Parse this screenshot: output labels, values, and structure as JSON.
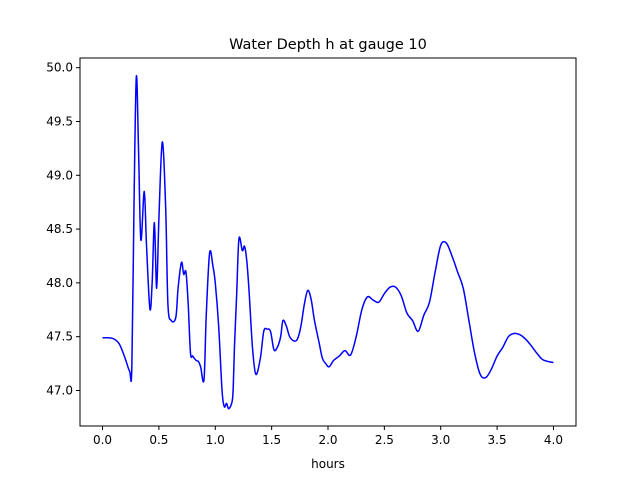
{
  "chart_data": {
    "type": "line",
    "title": "Water Depth h at gauge 10",
    "xlabel": "hours",
    "ylabel": "",
    "xlim": [
      -0.2,
      4.2
    ],
    "ylim": [
      46.67,
      50.09
    ],
    "xticks": [
      0.0,
      0.5,
      1.0,
      1.5,
      2.0,
      2.5,
      3.0,
      3.5,
      4.0
    ],
    "xtick_labels": [
      "0.0",
      "0.5",
      "1.0",
      "1.5",
      "2.0",
      "2.5",
      "3.0",
      "3.5",
      "4.0"
    ],
    "yticks": [
      47.0,
      47.5,
      48.0,
      48.5,
      49.0,
      49.5,
      50.0
    ],
    "ytick_labels": [
      "47.0",
      "47.5",
      "48.0",
      "48.5",
      "49.0",
      "49.5",
      "50.0"
    ],
    "grid": false,
    "legend": "none",
    "series": [
      {
        "color": "#0000ff",
        "x": [
          0.0,
          0.05,
          0.1,
          0.15,
          0.2,
          0.24,
          0.26,
          0.28,
          0.3,
          0.32,
          0.34,
          0.37,
          0.39,
          0.42,
          0.44,
          0.46,
          0.48,
          0.5,
          0.53,
          0.56,
          0.58,
          0.61,
          0.65,
          0.67,
          0.7,
          0.72,
          0.74,
          0.76,
          0.78,
          0.8,
          0.83,
          0.85,
          0.87,
          0.9,
          0.92,
          0.95,
          0.98,
          1.0,
          1.03,
          1.06,
          1.08,
          1.1,
          1.12,
          1.15,
          1.16,
          1.17,
          1.19,
          1.21,
          1.24,
          1.26,
          1.28,
          1.3,
          1.33,
          1.36,
          1.4,
          1.43,
          1.46,
          1.49,
          1.52,
          1.55,
          1.58,
          1.6,
          1.63,
          1.66,
          1.7,
          1.73,
          1.76,
          1.79,
          1.82,
          1.85,
          1.88,
          1.92,
          1.95,
          1.98,
          2.01,
          2.05,
          2.1,
          2.15,
          2.2,
          2.25,
          2.3,
          2.35,
          2.4,
          2.45,
          2.5,
          2.55,
          2.6,
          2.65,
          2.7,
          2.75,
          2.8,
          2.85,
          2.9,
          2.95,
          3.0,
          3.05,
          3.1,
          3.15,
          3.2,
          3.25,
          3.3,
          3.35,
          3.4,
          3.45,
          3.5,
          3.55,
          3.6,
          3.65,
          3.7,
          3.75,
          3.8,
          3.85,
          3.9,
          3.95,
          4.0
        ],
        "y": [
          47.49,
          47.49,
          47.48,
          47.43,
          47.3,
          47.18,
          47.22,
          48.8,
          49.92,
          49.2,
          48.4,
          48.85,
          48.35,
          47.76,
          48.0,
          48.56,
          47.95,
          48.6,
          49.31,
          48.7,
          47.8,
          47.65,
          47.68,
          47.95,
          48.19,
          48.08,
          48.1,
          47.8,
          47.35,
          47.32,
          47.28,
          47.27,
          47.22,
          47.1,
          47.7,
          48.28,
          48.15,
          48.0,
          47.6,
          47.0,
          46.85,
          46.88,
          46.83,
          46.9,
          47.05,
          47.4,
          47.9,
          48.41,
          48.3,
          48.34,
          48.2,
          47.92,
          47.4,
          47.15,
          47.3,
          47.55,
          47.57,
          47.55,
          47.38,
          47.4,
          47.5,
          47.65,
          47.6,
          47.5,
          47.46,
          47.48,
          47.6,
          47.8,
          47.93,
          47.85,
          47.65,
          47.45,
          47.3,
          47.25,
          47.22,
          47.28,
          47.32,
          47.37,
          47.33,
          47.5,
          47.75,
          47.87,
          47.84,
          47.82,
          47.9,
          47.96,
          47.96,
          47.88,
          47.72,
          47.65,
          47.55,
          47.7,
          47.82,
          48.1,
          48.35,
          48.37,
          48.25,
          48.1,
          47.95,
          47.65,
          47.35,
          47.15,
          47.12,
          47.2,
          47.32,
          47.4,
          47.5,
          47.53,
          47.52,
          47.48,
          47.42,
          47.35,
          47.29,
          47.27,
          47.26
        ]
      }
    ]
  }
}
